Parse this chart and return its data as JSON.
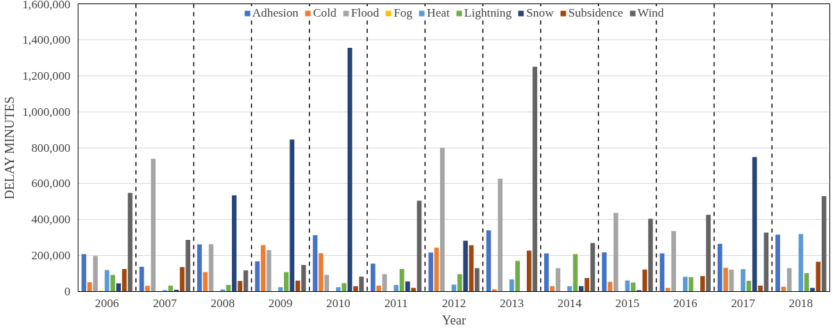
{
  "chart_data": {
    "type": "bar",
    "xlabel": "Year",
    "ylabel": "DELAY MINUTES",
    "categories": [
      "2006",
      "2007",
      "2008",
      "2009",
      "2010",
      "2011",
      "2012",
      "2013",
      "2014",
      "2015",
      "2016",
      "2017",
      "2018"
    ],
    "series": [
      {
        "name": "Adhesion",
        "color": "#4472c4",
        "values": [
          208000,
          138000,
          262000,
          168000,
          313000,
          155000,
          217000,
          340000,
          212000,
          218000,
          212000,
          265000,
          316000
        ]
      },
      {
        "name": "Cold",
        "color": "#ed7d31",
        "values": [
          52000,
          32000,
          108000,
          258000,
          213000,
          33000,
          244000,
          13000,
          30000,
          54000,
          20000,
          132000,
          27000
        ]
      },
      {
        "name": "Flood",
        "color": "#a5a5a5",
        "values": [
          198000,
          738000,
          263000,
          230000,
          93000,
          96000,
          800000,
          627000,
          130000,
          437000,
          336000,
          121000,
          130000
        ]
      },
      {
        "name": "Fog",
        "color": "#ffc000",
        "values": [
          5000,
          0,
          0,
          0,
          0,
          0,
          0,
          0,
          0,
          0,
          0,
          0,
          0
        ]
      },
      {
        "name": "Heat",
        "color": "#5b9bd5",
        "values": [
          120000,
          8000,
          12000,
          24000,
          24000,
          37000,
          39000,
          67000,
          30000,
          62000,
          82000,
          124000,
          320000
        ]
      },
      {
        "name": "Lightning",
        "color": "#70ad47",
        "values": [
          93000,
          33000,
          37000,
          108000,
          46000,
          125000,
          96000,
          171000,
          208000,
          50000,
          80000,
          60000,
          102000
        ]
      },
      {
        "name": "Snow",
        "color": "#264478",
        "values": [
          45000,
          10000,
          535000,
          845000,
          1355000,
          56000,
          282000,
          0,
          30000,
          8000,
          0,
          748000,
          20000
        ]
      },
      {
        "name": "Subsidence",
        "color": "#9e480e",
        "values": [
          125000,
          136000,
          59000,
          61000,
          30000,
          20000,
          257000,
          227000,
          75000,
          122000,
          86000,
          33000,
          166000
        ]
      },
      {
        "name": "Wind",
        "color": "#636363",
        "values": [
          548000,
          287000,
          118000,
          147000,
          83000,
          505000,
          130000,
          1250000,
          270000,
          405000,
          427000,
          328000,
          530000
        ]
      }
    ],
    "ylim": [
      0,
      1600000
    ],
    "yticks": [
      {
        "value": 0,
        "label": "0"
      },
      {
        "value": 200000,
        "label": "200,000"
      },
      {
        "value": 400000,
        "label": "400,000"
      },
      {
        "value": 600000,
        "label": "600,000"
      },
      {
        "value": 800000,
        "label": "800,000"
      },
      {
        "value": 1000000,
        "label": "1,000,000"
      },
      {
        "value": 1200000,
        "label": "1,200,000"
      },
      {
        "value": 1400000,
        "label": "1,400,000"
      },
      {
        "value": 1600000,
        "label": "1,600,000"
      }
    ],
    "grid": "y",
    "legend": "top"
  }
}
